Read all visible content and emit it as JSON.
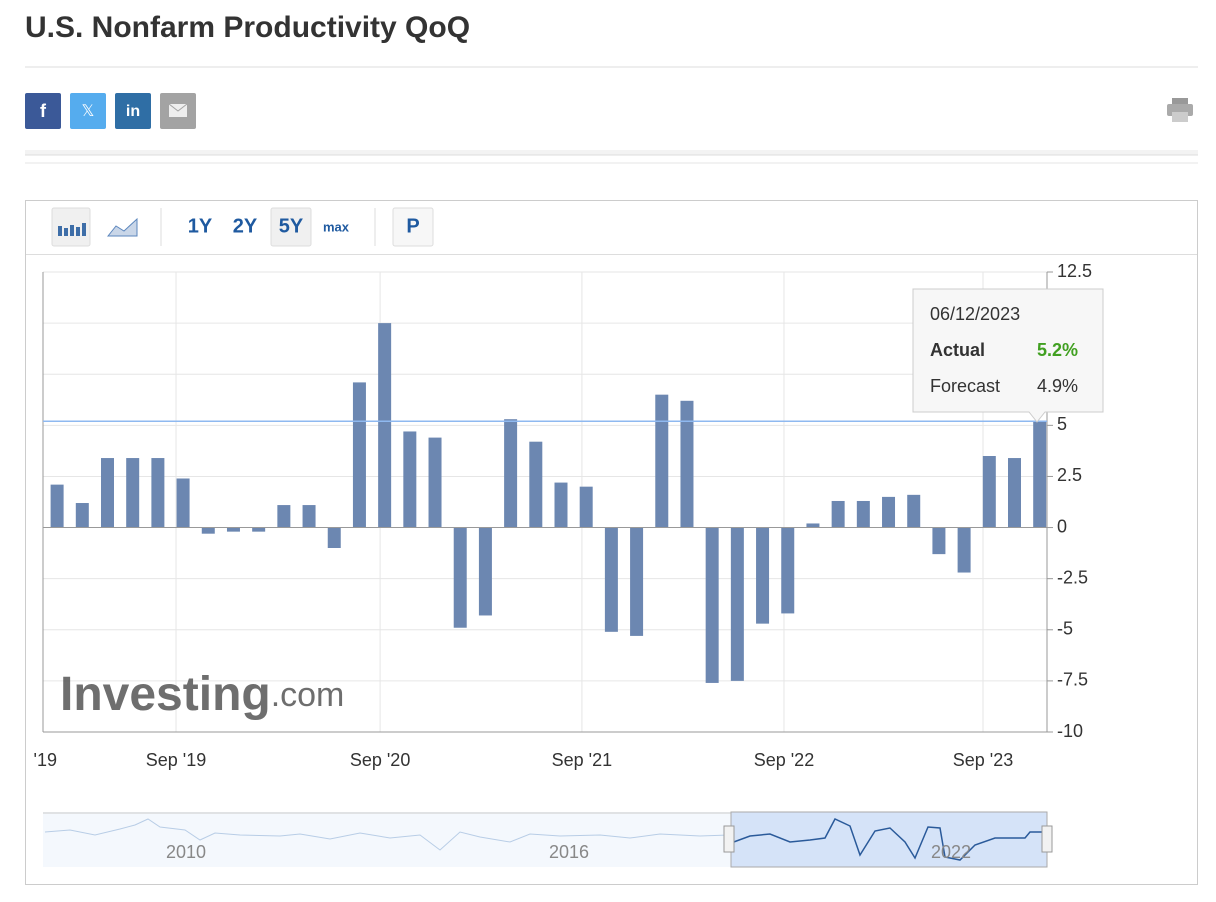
{
  "header": {
    "title": "U.S. Nonfarm Productivity QoQ",
    "share": [
      "f",
      "𝕏",
      "in"
    ]
  },
  "toolbar": {
    "ranges": [
      "1Y",
      "2Y",
      "5Y",
      "max"
    ],
    "print_button": "P"
  },
  "chart_data": {
    "type": "bar",
    "color": "#6c87b1",
    "categories": [
      null,
      null,
      null,
      null,
      null,
      null,
      null,
      null,
      null,
      null,
      null,
      null,
      null,
      null,
      null,
      null,
      null,
      null,
      null,
      null,
      null,
      null,
      null,
      null,
      null,
      null,
      null,
      null,
      null,
      null,
      null,
      null,
      null,
      null,
      null,
      null,
      null,
      null,
      null,
      null
    ],
    "values": [
      2.1,
      1.2,
      3.4,
      3.4,
      3.4,
      2.4,
      -0.3,
      -0.2,
      -0.2,
      1.1,
      1.1,
      -1.0,
      7.1,
      10.0,
      4.7,
      4.4,
      -4.9,
      -4.3,
      5.3,
      4.2,
      2.2,
      2.0,
      -5.1,
      -5.3,
      6.5,
      6.2,
      -7.6,
      -7.5,
      -4.7,
      -4.2,
      0.2,
      1.3,
      1.3,
      1.5,
      1.6,
      -1.3,
      -2.2,
      3.5,
      3.4,
      5.2
    ],
    "xlim": [
      -0.56,
      39.29
    ],
    "xticks": [
      {
        "value": -0.56,
        "label": "'19"
      },
      {
        "value": 4.72,
        "label": "Sep '19"
      },
      {
        "value": 12.82,
        "label": "Sep '20"
      },
      {
        "value": 20.83,
        "label": "Sep '21"
      },
      {
        "value": 28.85,
        "label": "Sep '22"
      },
      {
        "value": 36.75,
        "label": "Sep '23"
      }
    ],
    "ylim": [
      -10,
      12.5
    ],
    "yticks": [
      12.5,
      10,
      7.5,
      5,
      2.5,
      0,
      -2.5,
      -5,
      -7.5,
      -10
    ],
    "grid": true,
    "tooltip": {
      "date": "06/12/2023",
      "rows": [
        {
          "label": "Actual",
          "value": 5.2,
          "value_label": "5.2%",
          "color": "#41a021"
        },
        {
          "label": "Forecast",
          "value": 4.9,
          "value_label": "4.9%",
          "color": "#333333"
        }
      ]
    },
    "watermark": {
      "brand": "Investing",
      "suffix": ".com"
    },
    "navigator": {
      "labels": [
        "2010",
        "2016",
        "2022"
      ]
    }
  }
}
